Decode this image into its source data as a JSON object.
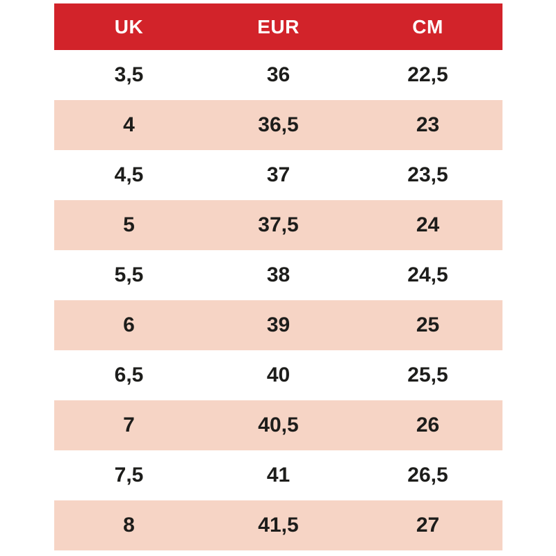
{
  "colors": {
    "page_bg": "#ffffff",
    "header_bg": "#d2232a",
    "header_text": "#ffffff",
    "row_bg": "#ffffff",
    "row_alt_bg": "#f6d4c5",
    "cell_text": "#1d1d1b"
  },
  "chart_data": {
    "type": "table",
    "columns": [
      "UK",
      "EUR",
      "CM"
    ],
    "rows": [
      [
        "3,5",
        "36",
        "22,5"
      ],
      [
        "4",
        "36,5",
        "23"
      ],
      [
        "4,5",
        "37",
        "23,5"
      ],
      [
        "5",
        "37,5",
        "24"
      ],
      [
        "5,5",
        "38",
        "24,5"
      ],
      [
        "6",
        "39",
        "25"
      ],
      [
        "6,5",
        "40",
        "25,5"
      ],
      [
        "7",
        "40,5",
        "26"
      ],
      [
        "7,5",
        "41",
        "26,5"
      ],
      [
        "8",
        "41,5",
        "27"
      ]
    ],
    "layout": {
      "zebra_striping": true,
      "first_data_row_background": "white",
      "alternate_row_background": "pink",
      "column_alignment": "center"
    }
  }
}
